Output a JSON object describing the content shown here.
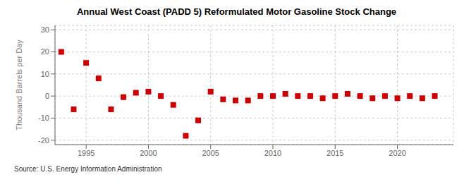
{
  "chart_data": {
    "type": "scatter",
    "title": "Annual West Coast (PADD 5) Reformulated Motor Gasoline Stock Change",
    "ylabel": "Thousand Barrels per Day",
    "annotations": [
      "Source: U.S. Energy Information Administration"
    ],
    "x": [
      1993,
      1994,
      1995,
      1996,
      1997,
      1998,
      1999,
      2000,
      2001,
      2002,
      2003,
      2004,
      2005,
      2006,
      2007,
      2008,
      2009,
      2010,
      2011,
      2012,
      2013,
      2014,
      2015,
      2016,
      2017,
      2018,
      2019,
      2020,
      2021,
      2022,
      2023
    ],
    "values": [
      20.0,
      -6.0,
      15.0,
      8.0,
      -6.0,
      -0.5,
      1.5,
      2.0,
      0.0,
      -4.0,
      -18.0,
      -11.0,
      2.0,
      -1.5,
      -2.0,
      -2.0,
      0.0,
      0.0,
      1.0,
      0.0,
      0.0,
      -1.0,
      0.0,
      1.0,
      0.0,
      -1.0,
      0.0,
      -1.0,
      0.0,
      -1.0,
      0.0
    ],
    "color": "#cc0000",
    "marker": "square",
    "xlim": [
      1992.5,
      2024.5
    ],
    "xticks": [
      1995,
      2000,
      2005,
      2010,
      2015,
      2020
    ],
    "ylim": [
      -22,
      32
    ],
    "yticks": [
      -20,
      -10,
      0,
      10,
      20,
      30
    ],
    "grid": true
  }
}
